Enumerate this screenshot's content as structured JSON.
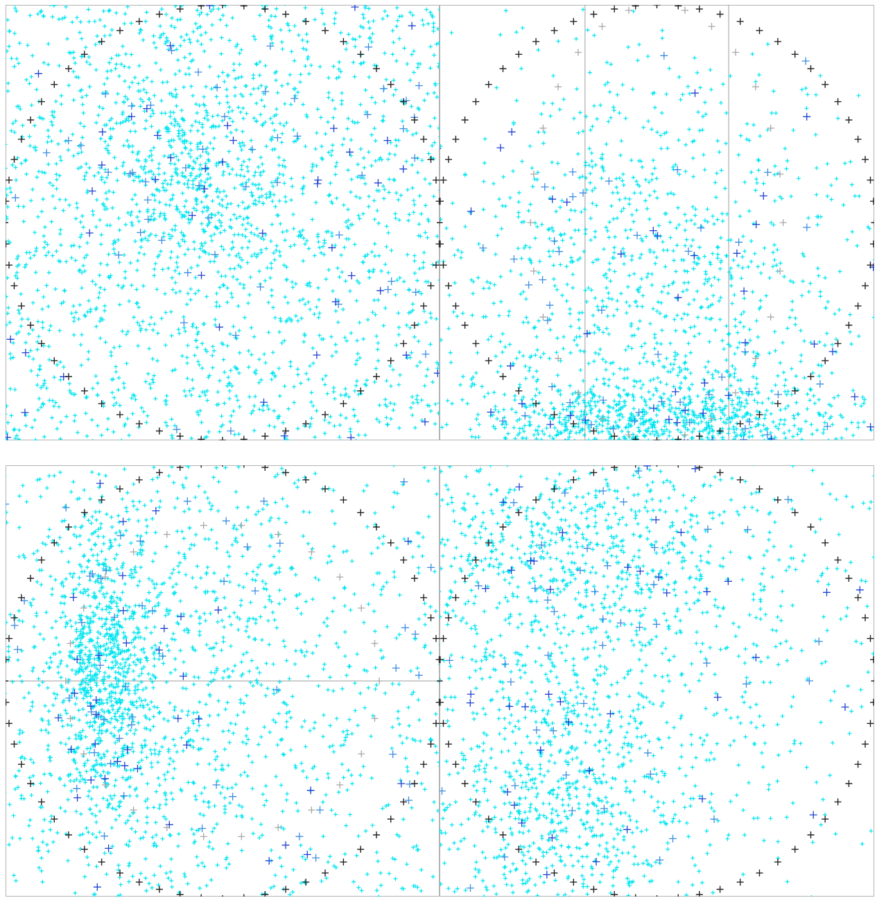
{
  "chart_data": [
    {
      "type": "scatter",
      "panel": "top-left",
      "title": "",
      "xlabel": "",
      "ylabel": "",
      "grid": false,
      "legend": "none",
      "colors": {
        "dense_markers": "#00e5f0",
        "sparse_markers": [
          "#3a8be0",
          "#1b3fd0"
        ],
        "circle_markers": "#222222",
        "frame": "#b3b3b3"
      },
      "clusters": [
        {
          "cx": 0.0,
          "cy": 0.22,
          "sx": 1.0,
          "sy": 0.1,
          "weight": 0.35
        },
        {
          "cx": -0.15,
          "cy": 0.2,
          "sx": 0.25,
          "sy": 0.25,
          "weight": 0.2
        },
        {
          "cx": 0.0,
          "cy": 0.0,
          "sx": 1.0,
          "sy": 1.0,
          "weight": 0.45
        }
      ],
      "reference_circle": {
        "radius": 1.0,
        "markers": 64
      },
      "ghost_circle": null,
      "guide_lines": []
    },
    {
      "type": "scatter",
      "panel": "top-right",
      "title": "",
      "xlabel": "",
      "ylabel": "",
      "grid": false,
      "legend": "none",
      "colors": {
        "dense_markers": "#00e5f0",
        "sparse_markers": [
          "#3a8be0",
          "#1b3fd0"
        ],
        "circle_markers": "#222222",
        "ghost_markers": "#a6a6a6",
        "frame": "#b3b3b3"
      },
      "clusters": [
        {
          "cx": 0.0,
          "cy": -0.95,
          "sx": 0.45,
          "sy": 0.12,
          "weight": 0.45
        },
        {
          "cx": 0.0,
          "cy": -0.3,
          "sx": 0.55,
          "sy": 0.55,
          "weight": 0.55
        }
      ],
      "reference_circle": {
        "radius": 1.0,
        "markers": 64
      },
      "ghost_circle": {
        "rx": 0.58,
        "ry": 1.0,
        "markers": 28
      },
      "guide_lines": [
        {
          "orientation": "vertical",
          "at": -0.33
        },
        {
          "orientation": "vertical",
          "at": 0.33
        }
      ]
    },
    {
      "type": "scatter",
      "panel": "bottom-left",
      "title": "",
      "xlabel": "",
      "ylabel": "",
      "grid": false,
      "legend": "none",
      "colors": {
        "dense_markers": "#00e5f0",
        "sparse_markers": [
          "#3a8be0",
          "#1b3fd0"
        ],
        "circle_markers": "#222222",
        "ghost_markers": "#a6a6a6",
        "frame": "#b3b3b3"
      },
      "clusters": [
        {
          "cx": -0.55,
          "cy": 0.05,
          "sx": 0.12,
          "sy": 0.35,
          "weight": 0.3
        },
        {
          "cx": -0.3,
          "cy": 0.0,
          "sx": 0.55,
          "sy": 0.6,
          "weight": 0.45
        },
        {
          "cx": 0.0,
          "cy": 0.0,
          "sx": 1.0,
          "sy": 1.0,
          "weight": 0.25
        }
      ],
      "reference_circle": {
        "radius": 1.0,
        "markers": 64
      },
      "ghost_circle": {
        "rx": 0.72,
        "ry": 0.72,
        "markers": 26
      },
      "guide_lines": [
        {
          "orientation": "horizontal",
          "at": 0.0
        }
      ]
    },
    {
      "type": "scatter",
      "panel": "bottom-right",
      "title": "",
      "xlabel": "",
      "ylabel": "",
      "grid": false,
      "legend": "none",
      "colors": {
        "dense_markers": "#00e5f0",
        "sparse_markers": [
          "#3a8be0",
          "#1b3fd0"
        ],
        "circle_markers": "#222222",
        "frame": "#b3b3b3"
      },
      "clusters": [
        {
          "cx": -0.4,
          "cy": 0.6,
          "sx": 0.45,
          "sy": 0.25,
          "weight": 0.3
        },
        {
          "cx": -0.45,
          "cy": -0.55,
          "sx": 0.3,
          "sy": 0.35,
          "weight": 0.3
        },
        {
          "cx": -0.1,
          "cy": 0.05,
          "sx": 0.7,
          "sy": 0.7,
          "weight": 0.4
        }
      ],
      "reference_circle": {
        "radius": 1.0,
        "markers": 64
      },
      "ghost_circle": null,
      "guide_lines": []
    }
  ]
}
